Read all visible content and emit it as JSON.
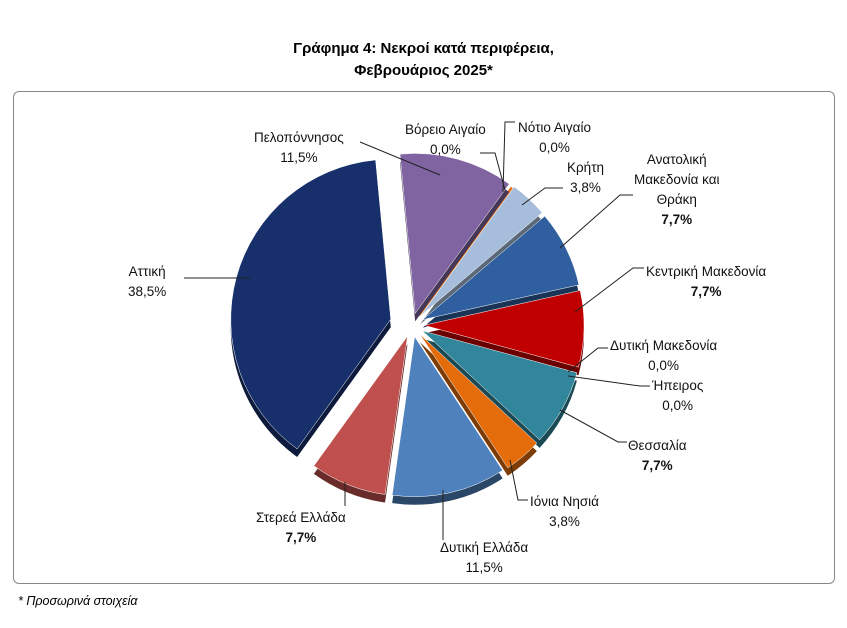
{
  "chart_data": {
    "type": "pie",
    "title_line1": "Γράφημα 4: Νεκροί κατά περιφέρεια,",
    "title_line2": "Φεβρουάριος 2025*",
    "start_angle_deg": 36,
    "slices": [
      {
        "name": "Βόρειο Αιγαίο",
        "value": 0.0,
        "label": "0,0%",
        "color": "#e46c0a"
      },
      {
        "name": "Νότιο Αιγαίο",
        "value": 0.0,
        "label": "0,0%",
        "color": "#f79646"
      },
      {
        "name": "Κρήτη",
        "value": 3.8,
        "label": "3,8%",
        "color": "#a6bddb"
      },
      {
        "name": "Ανατολική Μακεδονία και Θράκη",
        "value": 7.7,
        "label": "7,7%",
        "color": "#2f5f9f"
      },
      {
        "name": "Κεντρική Μακεδονία",
        "value": 7.7,
        "label": "7,7%",
        "color": "#c00000"
      },
      {
        "name": "Δυτική Μακεδονία",
        "value": 0.0,
        "label": "0,0%",
        "color": "#4bacc6"
      },
      {
        "name": "Ήπειρος",
        "value": 0.0,
        "label": "0,0%",
        "color": "#31869b"
      },
      {
        "name": "Θεσσαλία",
        "value": 7.7,
        "label": "7,7%",
        "color": "#31869b"
      },
      {
        "name": "Ιόνια Νησιά",
        "value": 3.8,
        "label": "3,8%",
        "color": "#e46c0a"
      },
      {
        "name": "Δυτική Ελλάδα",
        "value": 11.5,
        "label": "11,5%",
        "color": "#4f81bd"
      },
      {
        "name": "Στερεά Ελλάδα",
        "value": 7.7,
        "label": "7,7%",
        "color": "#c0504d"
      },
      {
        "name": "Αττική",
        "value": 38.5,
        "label": "38,5%",
        "color": "#17306b"
      },
      {
        "name": "Πελοπόννησος",
        "value": 11.5,
        "label": "11,5%",
        "color": "#8064a2"
      }
    ]
  },
  "labels": {
    "anat_l1": "Ανατολική",
    "anat_l2": "Μακεδονία και",
    "anat_l3": "Θράκη"
  },
  "footnote": "* Προσωρινά στοιχεία"
}
